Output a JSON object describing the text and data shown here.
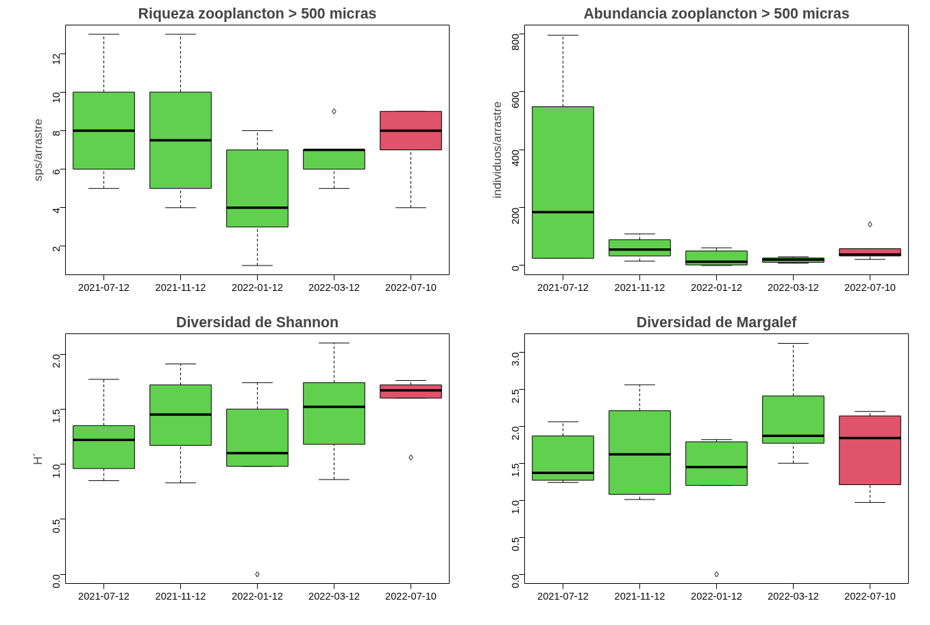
{
  "chart_data": [
    {
      "type": "box",
      "title": "Riqueza zooplancton > 500 micras",
      "ylabel": "sps/arrastre",
      "categories": [
        "2021-07-12",
        "2021-11-12",
        "2022-01-12",
        "2022-03-12",
        "2022-07-10"
      ],
      "colors": [
        "#61d04f",
        "#61d04f",
        "#61d04f",
        "#61d04f",
        "#df536b"
      ],
      "ylim": [
        0.52,
        13.48
      ],
      "yticks": [
        2,
        4,
        6,
        8,
        10,
        12
      ],
      "grid": false,
      "marker": "diamond",
      "boxes": [
        {
          "low": 5,
          "q1": 6,
          "median": 8,
          "q3": 10,
          "high": 13
        },
        {
          "low": 4,
          "q1": 5,
          "median": 7.5,
          "q3": 10,
          "high": 13
        },
        {
          "low": 1,
          "q1": 3,
          "median": 4,
          "q3": 7,
          "high": 8
        },
        {
          "low": 5,
          "q1": 6,
          "median": 7,
          "q3": 7,
          "high": 7,
          "outliers": [
            9
          ]
        },
        {
          "low": 4,
          "q1": 7,
          "median": 8,
          "q3": 9,
          "high": 9
        }
      ]
    },
    {
      "type": "box",
      "title": "Abundancia zooplancton > 500 micras",
      "ylabel": "individuos/arrastre",
      "categories": [
        "2021-07-12",
        "2021-11-12",
        "2022-01-12",
        "2022-03-12",
        "2022-07-10"
      ],
      "colors": [
        "#61d04f",
        "#61d04f",
        "#61d04f",
        "#61d04f",
        "#df536b"
      ],
      "ylim": [
        -32,
        830
      ],
      "yticks": [
        0,
        200,
        400,
        600,
        800
      ],
      "grid": false,
      "marker": "diamond",
      "boxes": [
        {
          "low": 25,
          "q1": 25,
          "median": 184,
          "q3": 548,
          "high": 795
        },
        {
          "low": 15,
          "q1": 33,
          "median": 55,
          "q3": 89,
          "high": 109
        },
        {
          "low": 0,
          "q1": 2,
          "median": 13,
          "q3": 50,
          "high": 61
        },
        {
          "low": 8,
          "q1": 11,
          "median": 20,
          "q3": 26,
          "high": 30
        },
        {
          "low": 21,
          "q1": 33,
          "median": 38,
          "q3": 58,
          "high": 58,
          "outliers": [
            142
          ]
        }
      ]
    },
    {
      "type": "box",
      "title": "Diversidad de Shannon",
      "ylabel": "H´",
      "categories": [
        "2021-07-12",
        "2021-11-12",
        "2022-01-12",
        "2022-03-12",
        "2022-07-10"
      ],
      "colors": [
        "#61d04f",
        "#61d04f",
        "#61d04f",
        "#61d04f",
        "#df536b"
      ],
      "ylim": [
        -0.084,
        2.184
      ],
      "yticks": [
        {
          "value": 0,
          "label": "0.0"
        },
        0.5,
        {
          "value": 1,
          "label": "1.0"
        },
        1.5,
        {
          "value": 2,
          "label": "2.0"
        }
      ],
      "grid": false,
      "marker": "diamond",
      "boxes": [
        {
          "low": 0.85,
          "q1": 0.96,
          "median": 1.22,
          "q3": 1.35,
          "high": 1.77
        },
        {
          "low": 0.83,
          "q1": 1.17,
          "median": 1.45,
          "q3": 1.72,
          "high": 1.91
        },
        {
          "low": 0.98,
          "q1": 0.98,
          "median": 1.1,
          "q3": 1.5,
          "high": 1.74,
          "outliers": [
            0
          ]
        },
        {
          "low": 0.86,
          "q1": 1.18,
          "median": 1.52,
          "q3": 1.74,
          "high": 2.1
        },
        {
          "low": 1.6,
          "q1": 1.6,
          "median": 1.67,
          "q3": 1.72,
          "high": 1.76,
          "outliers": [
            1.06
          ]
        }
      ]
    },
    {
      "type": "box",
      "title": "Diversidad de Margalef",
      "categories": [
        "2021-07-12",
        "2021-11-12",
        "2022-01-12",
        "2022-03-12",
        "2022-07-10"
      ],
      "colors": [
        "#61d04f",
        "#61d04f",
        "#61d04f",
        "#61d04f",
        "#df536b"
      ],
      "ylim": [
        -0.125,
        3.25
      ],
      "yticks": [
        {
          "value": 0,
          "label": "0.0"
        },
        0.5,
        {
          "value": 1,
          "label": "1.0"
        },
        1.5,
        {
          "value": 2,
          "label": "2.0"
        },
        2.5,
        {
          "value": 3,
          "label": "3.0"
        }
      ],
      "grid": false,
      "marker": "diamond",
      "boxes": [
        {
          "low": 1.24,
          "q1": 1.27,
          "median": 1.37,
          "q3": 1.87,
          "high": 2.06
        },
        {
          "low": 1.01,
          "q1": 1.08,
          "median": 1.62,
          "q3": 2.21,
          "high": 2.56
        },
        {
          "low": 1.2,
          "q1": 1.2,
          "median": 1.45,
          "q3": 1.79,
          "high": 1.82,
          "outliers": [
            0
          ]
        },
        {
          "low": 1.5,
          "q1": 1.77,
          "median": 1.87,
          "q3": 2.41,
          "high": 3.12
        },
        {
          "low": 0.97,
          "q1": 1.21,
          "median": 1.84,
          "q3": 2.14,
          "high": 2.2
        }
      ]
    }
  ]
}
